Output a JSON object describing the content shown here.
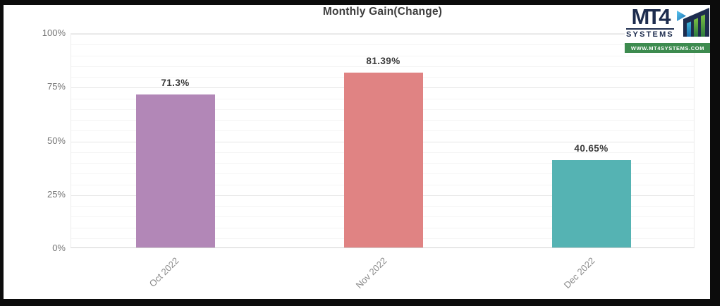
{
  "logo": {
    "brand": "MT4",
    "division": "SYSTEMS",
    "website": "WWW.MT4SYSTEMS.COM",
    "icon": "ascending-bars-logo-icon",
    "colors": {
      "navy": "#1d2c4e",
      "banner_green": "#3d8b4f"
    }
  },
  "chart_data": {
    "type": "bar",
    "title": "Monthly Gain(Change)",
    "categories": [
      "Oct 2022",
      "Nov 2022",
      "Dec 2022"
    ],
    "values": [
      71.3,
      81.39,
      40.65
    ],
    "value_labels": [
      "71.3%",
      "81.39%",
      "40.65%"
    ],
    "bar_colors": [
      "#b287b7",
      "#e08383",
      "#55b3b3"
    ],
    "y_ticks": [
      {
        "value": 0,
        "label": "0%"
      },
      {
        "value": 25,
        "label": "25%"
      },
      {
        "value": 50,
        "label": "50%"
      },
      {
        "value": 75,
        "label": "75%"
      },
      {
        "value": 100,
        "label": "100%"
      }
    ],
    "ylim": [
      0,
      100
    ],
    "minor_grid_step": 5,
    "grid": true,
    "legend_position": "none",
    "xlabel": "",
    "ylabel": "",
    "x_label_rotation_deg": -45
  }
}
